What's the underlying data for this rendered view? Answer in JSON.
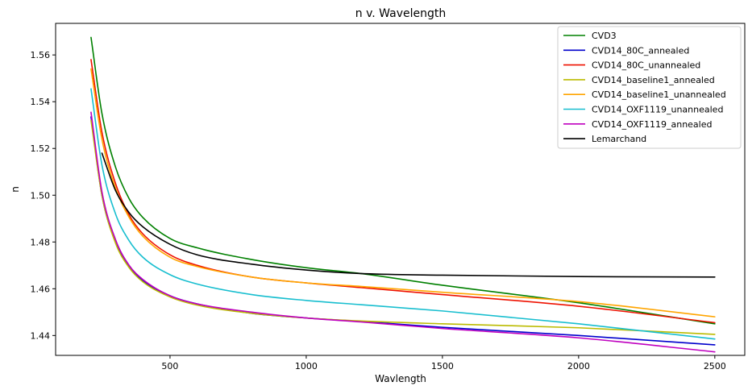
{
  "chart_data": {
    "type": "line",
    "title": "n v. Wavelength",
    "xlabel": "Wavlength",
    "ylabel": "n",
    "xlim": [
      80,
      2610
    ],
    "ylim": [
      1.4315,
      1.5735
    ],
    "xticks": [
      500,
      1000,
      1500,
      2000,
      2500
    ],
    "xtick_labels": [
      "500",
      "1000",
      "1500",
      "2000",
      "2500"
    ],
    "yticks": [
      1.44,
      1.46,
      1.48,
      1.5,
      1.52,
      1.54,
      1.56
    ],
    "ytick_labels": [
      "1.44",
      "1.46",
      "1.48",
      "1.50",
      "1.52",
      "1.54",
      "1.56"
    ],
    "grid": false,
    "legend_position": "upper right",
    "series": [
      {
        "name": "CVD3",
        "color": "#008000",
        "x": [
          210,
          250,
          300,
          350,
          400,
          500,
          600,
          800,
          1000,
          1200,
          1500,
          2000,
          2500
        ],
        "y": [
          1.5675,
          1.535,
          1.512,
          1.4985,
          1.4905,
          1.4815,
          1.4775,
          1.4725,
          1.469,
          1.4665,
          1.4615,
          1.454,
          1.445
        ]
      },
      {
        "name": "CVD14_80C_annealed",
        "color": "#0000cc",
        "x": [
          210,
          250,
          300,
          350,
          400,
          500,
          600,
          800,
          1000,
          1200,
          1500,
          2000,
          2500
        ],
        "y": [
          1.5335,
          1.5,
          1.48,
          1.4695,
          1.4635,
          1.457,
          1.4535,
          1.4495,
          1.4475,
          1.446,
          1.4435,
          1.44,
          1.436
        ]
      },
      {
        "name": "CVD14_80C_unannealed",
        "color": "#ee1100",
        "x": [
          210,
          250,
          300,
          350,
          400,
          500,
          600,
          800,
          1000,
          1200,
          1500,
          2000,
          2500
        ],
        "y": [
          1.558,
          1.527,
          1.505,
          1.4915,
          1.4835,
          1.4745,
          1.47,
          1.465,
          1.4625,
          1.4605,
          1.4575,
          1.4525,
          1.4455
        ]
      },
      {
        "name": "CVD14_baseline1_annealed",
        "color": "#bbbb00",
        "x": [
          210,
          250,
          300,
          350,
          400,
          500,
          600,
          800,
          1000,
          1200,
          1500,
          2000,
          2500
        ],
        "y": [
          1.532,
          1.5,
          1.4795,
          1.469,
          1.463,
          1.4565,
          1.453,
          1.4495,
          1.4475,
          1.4462,
          1.445,
          1.4433,
          1.4405
        ]
      },
      {
        "name": "CVD14_baseline1_unannealed",
        "color": "#ffa500",
        "x": [
          210,
          250,
          300,
          350,
          400,
          500,
          600,
          800,
          1000,
          1200,
          1500,
          2000,
          2500
        ],
        "y": [
          1.554,
          1.524,
          1.503,
          1.4905,
          1.4825,
          1.4735,
          1.4695,
          1.465,
          1.4625,
          1.461,
          1.4585,
          1.4545,
          1.448
        ]
      },
      {
        "name": "CVD14_OXF1119_unannealed",
        "color": "#17becf",
        "x": [
          210,
          250,
          300,
          350,
          400,
          500,
          600,
          800,
          1000,
          1200,
          1500,
          2000,
          2500
        ],
        "y": [
          1.5455,
          1.513,
          1.492,
          1.4805,
          1.4735,
          1.466,
          1.462,
          1.4575,
          1.455,
          1.4532,
          1.4505,
          1.445,
          1.4385
        ]
      },
      {
        "name": "CVD14_OXF1119_annealed",
        "color": "#bf00bf",
        "x": [
          210,
          250,
          300,
          350,
          400,
          500,
          600,
          800,
          1000,
          1200,
          1500,
          2000,
          2500
        ],
        "y": [
          1.5355,
          1.5015,
          1.481,
          1.47,
          1.464,
          1.457,
          1.4535,
          1.45,
          1.4475,
          1.4458,
          1.443,
          1.439,
          1.433
        ]
      },
      {
        "name": "Lemarchand",
        "color": "#000000",
        "x": [
          250,
          300,
          350,
          400,
          500,
          600,
          800,
          1000,
          1200,
          1500,
          2000,
          2500
        ],
        "y": [
          1.518,
          1.502,
          1.4925,
          1.4865,
          1.479,
          1.4745,
          1.4705,
          1.468,
          1.4665,
          1.4658,
          1.4652,
          1.465
        ]
      }
    ]
  }
}
